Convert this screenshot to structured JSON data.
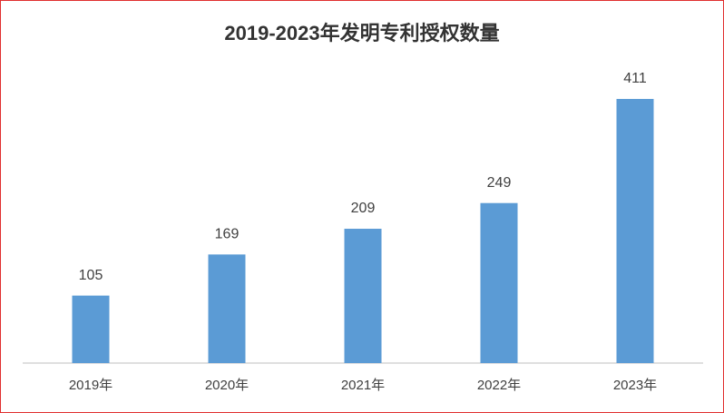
{
  "chart_data": {
    "type": "bar",
    "title": "2019-2023年发明专利授权数量",
    "categories": [
      "2019年",
      "2020年",
      "2021年",
      "2022年",
      "2023年"
    ],
    "values": [
      105,
      169,
      209,
      249,
      411
    ],
    "color": "#5b9bd5"
  }
}
